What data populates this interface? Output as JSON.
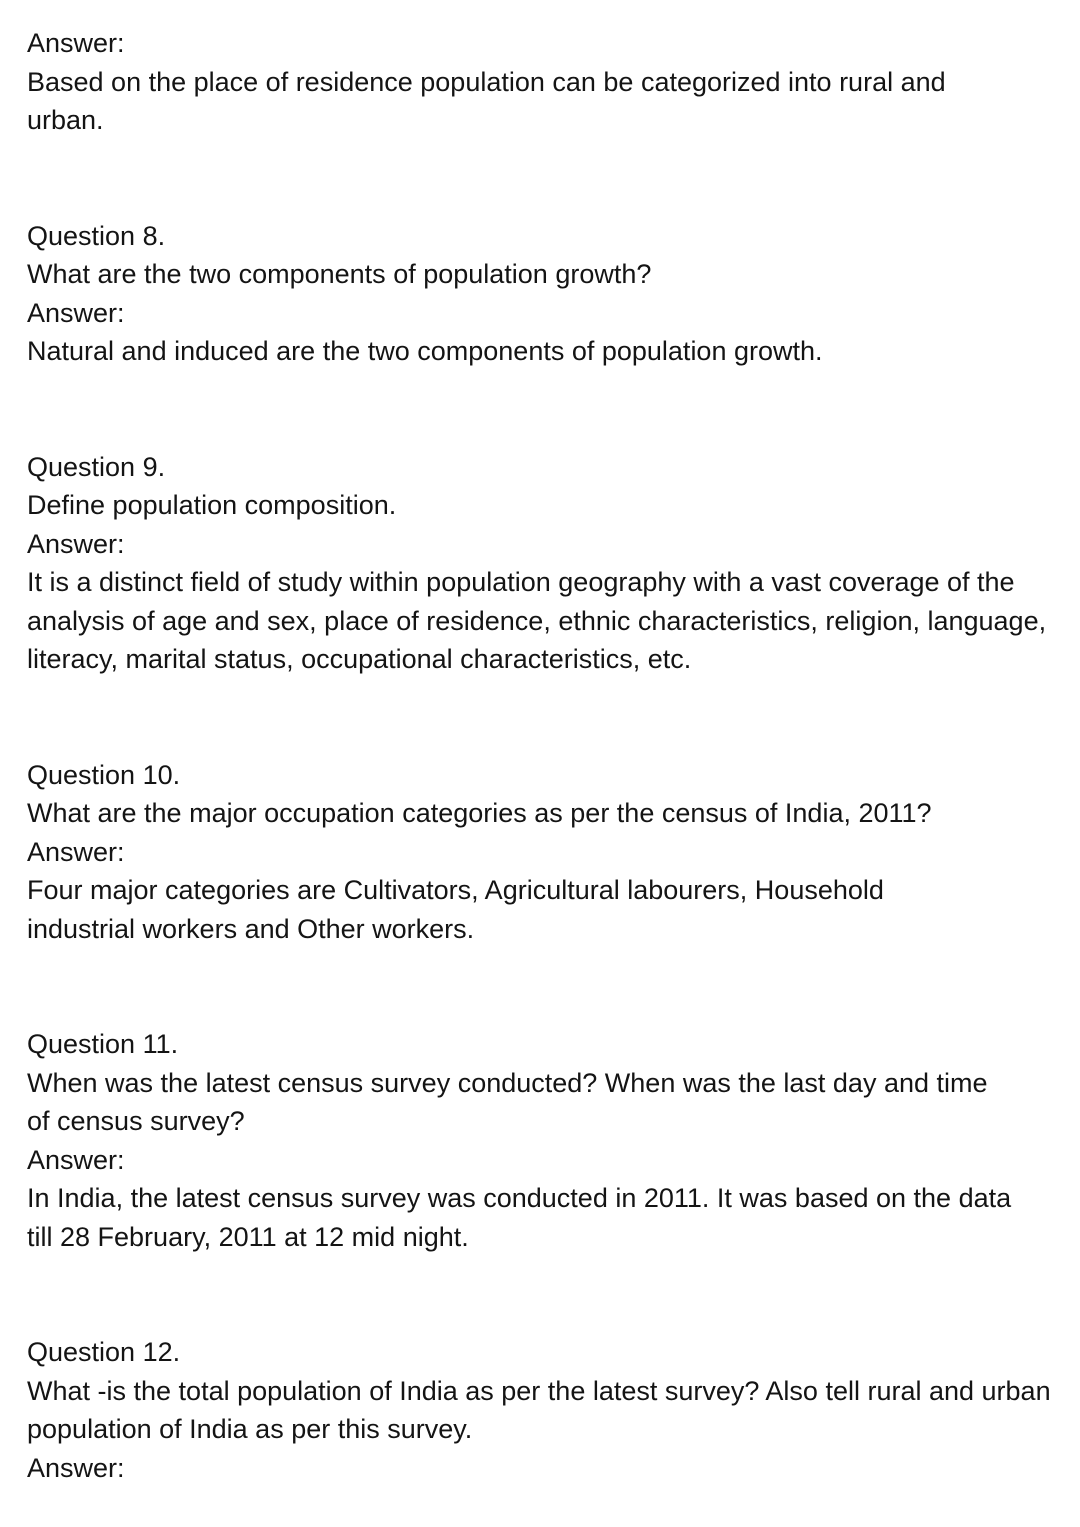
{
  "intro": {
    "answer_label": "Answer:",
    "answer_text": "Based on the place of residence population can be categorized into rural and urban."
  },
  "questions": [
    {
      "label": "Question 8.",
      "question": "What are the two components of population growth?",
      "answer_label": "Answer:",
      "answer": "Natural and induced are the two components of population growth."
    },
    {
      "label": "Question 9.",
      "question": "Define population composition.",
      "answer_label": "Answer:",
      "answer": "It is a distinct field of study within population geography with a vast coverage of the analysis of age and sex, place of residence, ethnic characteristics, religion, language, literacy, marital status, occupational characteristics, etc."
    },
    {
      "label": "Question 10.",
      "question": "What are the major occupation categories as per the census of India, 2011?",
      "answer_label": "Answer:",
      "answer": "Four major categories are Cultivators, Agricultural labourers, Household industrial workers and Other workers."
    },
    {
      "label": "Question 11.",
      "question": "When was the latest census survey conducted? When was the last day and time of census survey?",
      "answer_label": "Answer:",
      "answer": "In India, the latest census survey was conducted in 2011. It was based on the data till 28 February, 2011 at 12 mid night."
    },
    {
      "label": "Question 12.",
      "question": "What -is the total population of India as per the latest survey? Also tell rural and urban population of India as per this survey.",
      "answer_label": "Answer:"
    }
  ]
}
